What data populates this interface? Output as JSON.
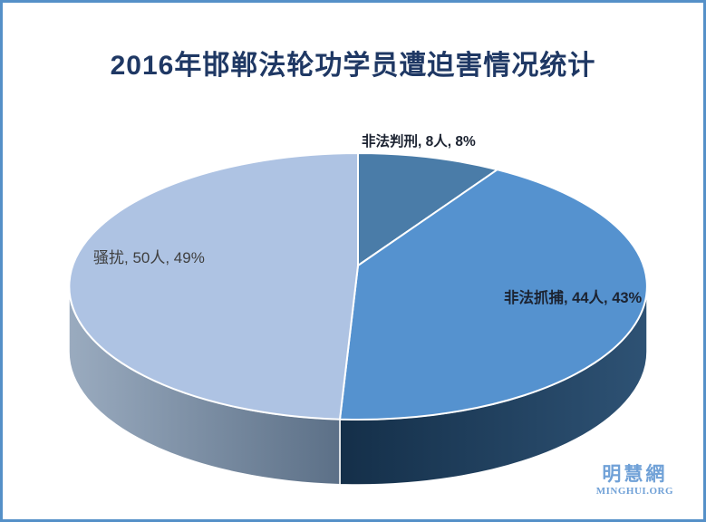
{
  "title": {
    "text": "2016年邯郸法轮功学员遭迫害情况统计",
    "color": "#1F3864"
  },
  "frame": {
    "border_color": "#5590C8",
    "background": "#FFFFFF"
  },
  "watermark": {
    "cjk": "明慧網",
    "latin": "MINGHUI.ORG",
    "color": "#70A1D7"
  },
  "chart_data": {
    "type": "pie",
    "style": "3d",
    "title": "2016年邯郸法轮功学员遭迫害情况统计",
    "legend": "none",
    "start_angle_deg": 0,
    "direction": "clockwise",
    "unit": "人",
    "slices": [
      {
        "key": "sentenced",
        "name": "非法判刑",
        "count": 8,
        "percent": 8,
        "label": "非法判刑, 8人, 8%",
        "color": "#4A7CA8",
        "label_bold": true
      },
      {
        "key": "arrested",
        "name": "非法抓捕",
        "count": 44,
        "percent": 43,
        "label": "非法抓捕, 44人, 43%",
        "color": "#5592CF",
        "side_gradient": [
          "#142F49",
          "#2E5274"
        ],
        "label_bold": true
      },
      {
        "key": "harassed",
        "name": "骚扰",
        "count": 50,
        "percent": 49,
        "label": "骚扰, 50人, 49%",
        "color": "#AEC3E3",
        "side_gradient": [
          "#9AABBF",
          "#5C7087"
        ],
        "label_bold": false
      }
    ]
  }
}
